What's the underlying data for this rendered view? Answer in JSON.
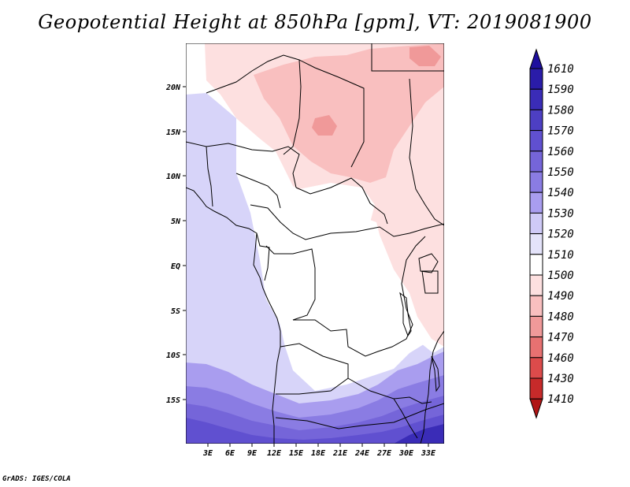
{
  "title": "Geopotential Height at 850hPa [gpm], VT: 2019081900",
  "footer": "GrADS: IGES/COLA",
  "map": {
    "lon_range": [
      0,
      35
    ],
    "lat_range": [
      -20,
      25
    ],
    "lon_ticks": [
      "3E",
      "6E",
      "9E",
      "12E",
      "15E",
      "18E",
      "21E",
      "24E",
      "27E",
      "30E",
      "33E"
    ],
    "lat_ticks": [
      "20N",
      "15N",
      "10N",
      "5N",
      "EQ",
      "5S",
      "10S",
      "15S"
    ]
  },
  "colorbar": {
    "labels": [
      "1610",
      "1590",
      "1580",
      "1570",
      "1560",
      "1550",
      "1540",
      "1530",
      "1520",
      "1510",
      "1500",
      "1490",
      "1480",
      "1470",
      "1460",
      "1430",
      "1410"
    ],
    "colors": [
      "#1e0f9e",
      "#2a1ca9",
      "#3a2cb7",
      "#4d3fc3",
      "#6050d0",
      "#7565d9",
      "#8a7ce3",
      "#a99def",
      "#cfcaf7",
      "#e4e3fa",
      "#ffffff",
      "#fde0e0",
      "#f9bfbf",
      "#f09999",
      "#e77171",
      "#dc4b4b",
      "#c72a2a",
      "#b01515"
    ]
  },
  "field_colors": {
    "c1610": "#1e0f9e",
    "c1560": "#6050d0",
    "c1550": "#7565d9",
    "c1540": "#8a7ce3",
    "c1530": "#a99def",
    "c1520": "#d7d4f9",
    "c1510": "#ffffff",
    "c1500": "#fde0e0",
    "c1490": "#f9bfbf",
    "c1480": "#f09999"
  }
}
